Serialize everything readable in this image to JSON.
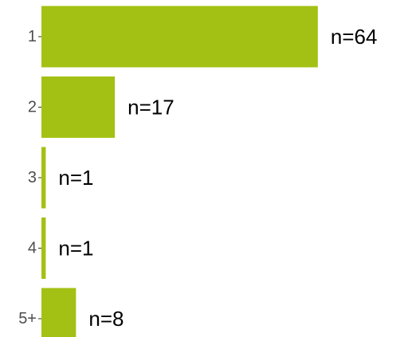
{
  "chart_data": {
    "type": "bar",
    "orientation": "horizontal",
    "title": "",
    "xlabel": "",
    "ylabel": "",
    "categories": [
      "1",
      "2",
      "3",
      "4",
      "5+"
    ],
    "values": [
      64,
      17,
      1,
      1,
      8
    ],
    "data_labels": [
      "n=64",
      "n=17",
      "n=1",
      "n=1",
      "n=8"
    ],
    "xlim": [
      0,
      64
    ],
    "grid": false,
    "legend": "none",
    "bar_color": "#a3c114"
  }
}
